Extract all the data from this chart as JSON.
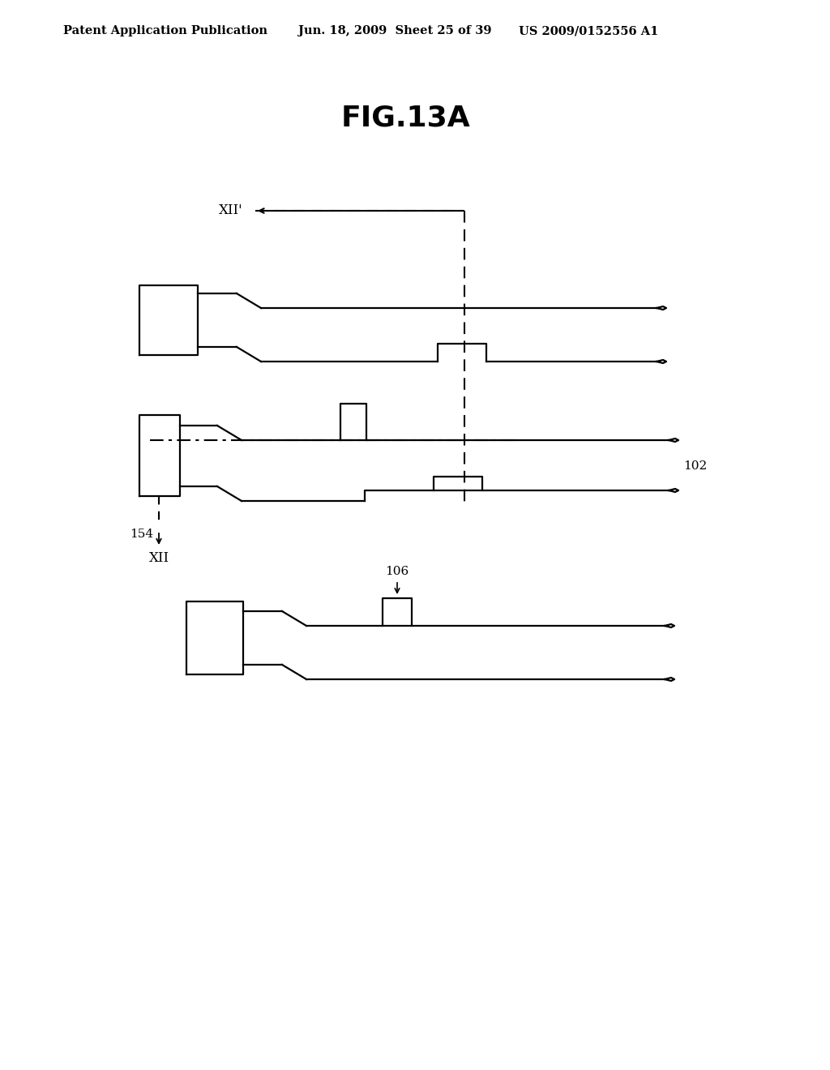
{
  "background_color": "#ffffff",
  "title": "FIG.13A",
  "title_fontsize": 26,
  "header_left": "Patent Application Publication",
  "header_center": "Jun. 18, 2009  Sheet 25 of 39",
  "header_right": "US 2009/0152556 A1",
  "header_fontsize": 10.5,
  "label_102": "102",
  "label_154": "154",
  "label_106": "106",
  "label_XII_prime": "XII’",
  "label_XII": "XII",
  "lw": 1.6
}
